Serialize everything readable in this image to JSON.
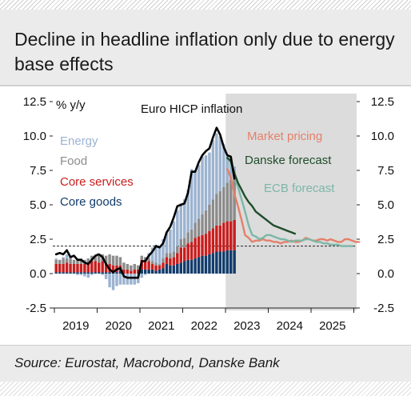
{
  "title": "Decline in headline inflation only due to energy base effects",
  "source": "Source: Eurostat, Macrobond, Danske Bank",
  "colors": {
    "energy": "#9cb3d0",
    "food": "#8c8c8c",
    "core_services": "#c81e1e",
    "core_goods": "#123c6b",
    "headline": "#000000",
    "market_pricing": "#e4806a",
    "danske_forecast": "#1f4d2b",
    "ecb_forecast": "#7cb7a7",
    "forecast_shade": "#dcdcdc"
  },
  "chart_data": {
    "type": "bar",
    "title": "Euro HICP inflation",
    "ylabel": "% y/y",
    "ylim": [
      -2.5,
      12.5
    ],
    "yticks": [
      "-2.5",
      "0.0",
      "2.5",
      "5.0",
      "7.5",
      "10.0",
      "12.5"
    ],
    "xticks": [
      "2019",
      "2020",
      "2021",
      "2022",
      "2023",
      "2024",
      "2025"
    ],
    "reference_line": 2.0,
    "legend": [
      {
        "key": "energy",
        "label": "Energy"
      },
      {
        "key": "food",
        "label": "Food"
      },
      {
        "key": "core_services",
        "label": "Core services"
      },
      {
        "key": "core_goods",
        "label": "Core goods"
      }
    ],
    "forecast_labels": [
      {
        "key": "market_pricing",
        "label": "Market pricing"
      },
      {
        "key": "danske_forecast",
        "label": "Danske forecast"
      },
      {
        "key": "ecb_forecast",
        "label": "ECB forecast"
      }
    ],
    "bars": {
      "start": "2019-01",
      "frequency": "monthly",
      "core_goods": [
        0.1,
        0.1,
        0.1,
        0.1,
        0.1,
        0.1,
        0.1,
        0.1,
        0.1,
        0.1,
        0.1,
        0.1,
        0.1,
        0.1,
        0.1,
        0.1,
        0.1,
        0.1,
        0.2,
        0.0,
        0.0,
        0.0,
        0.0,
        0.0,
        0.3,
        0.3,
        0.3,
        0.3,
        0.2,
        0.3,
        0.4,
        0.7,
        0.6,
        0.6,
        0.7,
        0.8,
        0.9,
        1.0,
        1.0,
        1.1,
        1.2,
        1.3,
        1.3,
        1.4,
        1.5,
        1.6,
        1.6,
        1.6,
        1.7,
        1.7,
        1.7
      ],
      "core_services": [
        0.6,
        0.6,
        0.6,
        0.7,
        0.6,
        0.6,
        0.6,
        0.6,
        0.6,
        0.7,
        0.8,
        0.8,
        0.7,
        0.8,
        0.6,
        0.6,
        0.5,
        0.5,
        0.4,
        0.3,
        0.3,
        0.2,
        0.3,
        0.3,
        0.7,
        0.6,
        0.6,
        0.4,
        0.4,
        0.3,
        0.4,
        0.5,
        0.5,
        0.6,
        0.8,
        1.1,
        1.0,
        1.2,
        1.3,
        1.5,
        1.5,
        1.5,
        1.6,
        1.7,
        1.8,
        1.9,
        1.9,
        2.1,
        2.1,
        2.1,
        2.2
      ],
      "food": [
        0.3,
        0.3,
        0.4,
        0.3,
        0.4,
        0.3,
        0.4,
        0.4,
        0.3,
        0.3,
        0.4,
        0.4,
        0.5,
        0.5,
        0.6,
        0.7,
        0.7,
        0.7,
        0.6,
        0.5,
        0.4,
        0.4,
        0.4,
        0.3,
        0.3,
        0.3,
        0.2,
        0.2,
        0.2,
        0.1,
        0.3,
        0.3,
        0.4,
        0.4,
        0.5,
        0.6,
        0.7,
        0.8,
        0.9,
        1.1,
        1.3,
        1.5,
        1.7,
        1.9,
        2.1,
        2.3,
        2.5,
        2.6,
        2.8,
        3.0,
        3.1
      ],
      "energy": [
        0.1,
        0.0,
        0.1,
        0.3,
        0.2,
        0.0,
        -0.1,
        -0.1,
        -0.2,
        -0.3,
        -0.1,
        0.0,
        0.1,
        -0.1,
        -0.4,
        -1.0,
        -1.2,
        -0.9,
        -0.8,
        -0.8,
        -0.8,
        -0.8,
        -0.8,
        -0.7,
        -0.3,
        -0.1,
        0.4,
        1.0,
        1.3,
        1.3,
        1.4,
        1.5,
        1.7,
        2.2,
        2.6,
        2.6,
        2.8,
        3.1,
        4.4,
        3.8,
        3.9,
        4.2,
        4.0,
        3.8,
        4.3,
        4.4,
        4.0,
        3.1,
        1.9,
        1.3,
        0.8
      ]
    },
    "series": [
      {
        "key": "headline",
        "start": "2019-01",
        "values": [
          1.4,
          1.5,
          1.4,
          1.7,
          1.2,
          1.3,
          1.0,
          1.0,
          0.8,
          0.7,
          1.0,
          1.3,
          1.4,
          1.2,
          0.7,
          0.3,
          0.1,
          0.3,
          0.4,
          -0.2,
          -0.3,
          -0.3,
          -0.3,
          -0.3,
          0.9,
          0.9,
          1.3,
          1.6,
          2.0,
          1.9,
          2.2,
          3.0,
          3.4,
          4.1,
          4.9,
          5.0,
          5.1,
          5.9,
          7.4,
          7.4,
          8.1,
          8.6,
          8.9,
          9.1,
          9.9,
          10.6,
          10.1,
          9.2,
          8.6,
          8.5,
          6.9
        ]
      },
      {
        "key": "market_pricing",
        "start": "2023-01",
        "values": [
          7.6,
          7.0,
          5.8,
          4.9,
          3.9,
          2.8,
          2.6,
          2.3,
          2.4,
          2.4,
          2.5,
          2.4,
          2.4,
          2.3,
          2.3,
          2.2,
          2.3,
          2.3,
          2.4,
          2.3,
          2.3,
          2.4,
          2.6,
          2.5,
          2.4,
          2.4,
          2.5,
          2.5,
          2.4,
          2.5,
          2.4,
          2.3,
          2.3,
          2.5,
          2.5,
          2.4,
          2.3,
          2.3
        ]
      },
      {
        "key": "danske_forecast",
        "start": "2023-01",
        "values": [
          8.4,
          8.2,
          7.3,
          6.6,
          6.1,
          5.6,
          5.2,
          4.9,
          4.5,
          4.3,
          4.1,
          3.9,
          3.7,
          3.5,
          3.4,
          3.3,
          3.2,
          3.1,
          3.0,
          2.9
        ]
      },
      {
        "key": "ecb_forecast",
        "start": "2023-01",
        "values": [
          8.5,
          8.0,
          7.0,
          6.3,
          5.4,
          4.5,
          3.5,
          2.8,
          2.7,
          2.5,
          2.6,
          2.8,
          2.8,
          2.7,
          2.6,
          2.5,
          2.5,
          2.4,
          2.3,
          2.4,
          2.4,
          2.4,
          2.5,
          2.5,
          2.4,
          2.3,
          2.3,
          2.2,
          2.2,
          2.1,
          2.1,
          2.1,
          2.0,
          2.0,
          2.0,
          2.0
        ]
      }
    ]
  }
}
